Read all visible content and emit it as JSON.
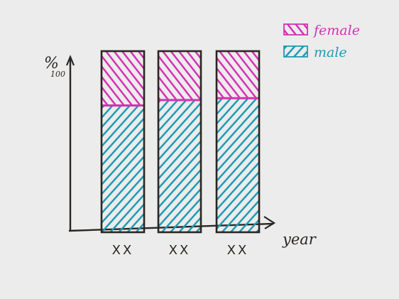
{
  "chart_data": {
    "type": "bar",
    "stacked": true,
    "percent_stacked": true,
    "categories": [
      "XX",
      "XX",
      "XX"
    ],
    "series": [
      {
        "name": "male",
        "values": [
          70,
          73,
          74
        ]
      },
      {
        "name": "female",
        "values": [
          30,
          27,
          26
        ]
      }
    ],
    "title": "",
    "xlabel": "year",
    "ylabel": "%",
    "ylabel_sub": "100",
    "ylim": [
      0,
      100
    ],
    "grid": false,
    "legend": "top-right",
    "colors": {
      "female": "#d631b4",
      "male": "#1f9bb5",
      "outline": "#2b2622",
      "paper": "#ececec"
    }
  }
}
